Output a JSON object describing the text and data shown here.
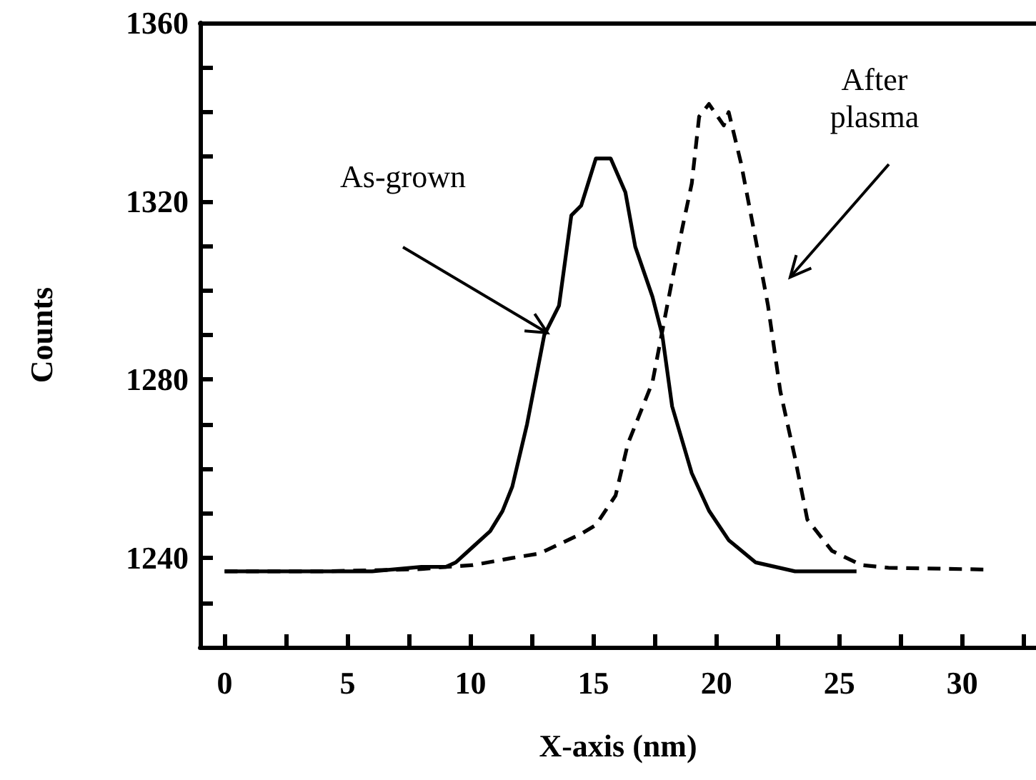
{
  "chart_data": {
    "type": "line",
    "xlabel": "X-axis (nm)",
    "ylabel": "Counts",
    "xlim": [
      -1,
      33
    ],
    "ylim": [
      1220,
      1360
    ],
    "xticks": [
      0,
      {
        "value": 2.5,
        "label": null
      },
      5,
      {
        "value": 7.5,
        "label": null
      },
      10,
      {
        "value": 12.5,
        "label": null
      },
      15,
      {
        "value": 17.5,
        "label": null
      },
      20,
      {
        "value": 22.5,
        "label": null
      },
      25,
      {
        "value": 27.5,
        "label": null
      },
      30,
      {
        "value": 32.5,
        "label": null
      }
    ],
    "yticks": [
      {
        "value": 1230,
        "label": null
      },
      1240,
      {
        "value": 1250,
        "label": null
      },
      {
        "value": 1260,
        "label": null
      },
      {
        "value": 1270,
        "label": null
      },
      1280,
      {
        "value": 1290,
        "label": null
      },
      {
        "value": 1300,
        "label": null
      },
      {
        "value": 1310,
        "label": null
      },
      1320,
      {
        "value": 1330,
        "label": null
      },
      {
        "value": 1340,
        "label": null
      },
      {
        "value": 1350,
        "label": null
      },
      1360
    ],
    "grid": false,
    "marker": "none",
    "series": [
      {
        "color": "#000000",
        "line_style": "solid",
        "x": [
          0,
          3,
          6,
          8,
          9,
          9.4,
          10.1,
          10.8,
          11.3,
          11.7,
          12.3,
          13.0,
          13.6,
          14.1,
          14.5,
          15.1,
          15.7,
          16.3,
          16.7,
          17.4,
          17.8,
          18.2,
          19.0,
          19.7,
          20.5,
          21.6,
          23.2,
          25.7
        ],
        "values": [
          1237,
          1237,
          1237,
          1238,
          1238,
          1239,
          1242.5,
          1246,
          1250.5,
          1256,
          1270,
          1290,
          1296.6,
          1316.8,
          1319,
          1329.6,
          1329.6,
          1322,
          1309.8,
          1298.6,
          1290,
          1274,
          1259,
          1250.6,
          1244,
          1239,
          1237,
          1237
        ]
      },
      {
        "color": "#000000",
        "line_style": "dashed",
        "x": [
          0,
          4,
          8,
          9,
          10.1,
          11.7,
          12.8,
          14.5,
          15.1,
          15.9,
          16.4,
          17.4,
          18.0,
          18.6,
          19.0,
          19.3,
          19.7,
          20.3,
          20.5,
          21.0,
          21.6,
          22.1,
          22.6,
          23.2,
          23.7,
          24.7,
          25.9,
          27,
          31
        ],
        "values": [
          1237,
          1237,
          1237.5,
          1238,
          1238.4,
          1240,
          1241,
          1245.4,
          1247.4,
          1254,
          1265.6,
          1279.4,
          1296.6,
          1313.6,
          1324,
          1339,
          1341.8,
          1337,
          1340,
          1328.6,
          1311.4,
          1296.6,
          1277.4,
          1262.4,
          1248.6,
          1241.6,
          1238.4,
          1237.8,
          1237.4
        ]
      }
    ],
    "annotations": [
      "As-grown",
      "After\nplasma"
    ]
  }
}
